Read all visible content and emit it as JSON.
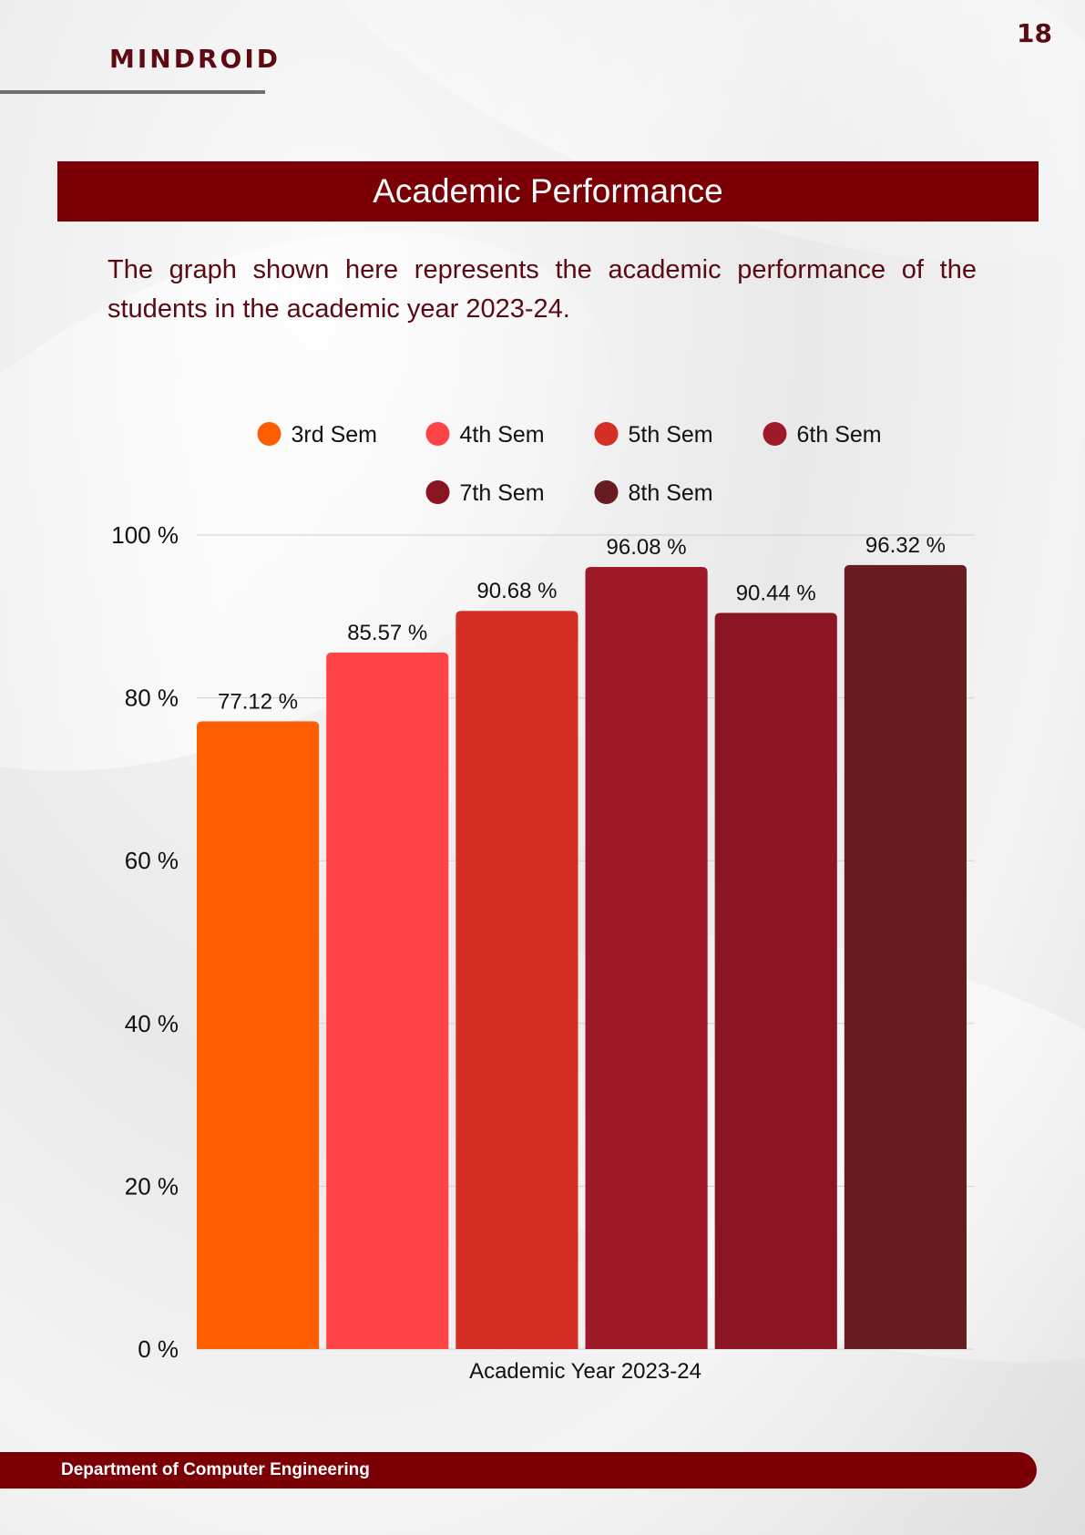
{
  "header": {
    "brand": "MINDROID",
    "page_number": "18"
  },
  "title": "Academic Performance",
  "intro_text": "The graph shown here represents the academic performance of the students in the academic year 2023-24.",
  "footer": {
    "department": "Department of Computer Engineering"
  },
  "chart_data": {
    "type": "bar",
    "categories": [
      "Academic Year 2023-24"
    ],
    "xlabel": "Academic Year 2023-24",
    "ylabel": "",
    "ylim": [
      0,
      100
    ],
    "y_ticks": [
      "0 %",
      "20 %",
      "40 %",
      "60 %",
      "80 %",
      "100 %"
    ],
    "y_tick_values": [
      0,
      20,
      40,
      60,
      80,
      100
    ],
    "grid": true,
    "legend_position": "top",
    "series": [
      {
        "name": "3rd Sem",
        "values": [
          77.12
        ],
        "label": "77.12 %",
        "color": "#ff5e00"
      },
      {
        "name": "4th Sem",
        "values": [
          85.57
        ],
        "label": "85.57 %",
        "color": "#ff4447"
      },
      {
        "name": "5th Sem",
        "values": [
          90.68
        ],
        "label": "90.68 %",
        "color": "#d52e24"
      },
      {
        "name": "6th Sem",
        "values": [
          96.08
        ],
        "label": "96.08 %",
        "color": "#9e1a28"
      },
      {
        "name": "7th Sem",
        "values": [
          90.44
        ],
        "label": "90.44 %",
        "color": "#8a1624"
      },
      {
        "name": "8th Sem",
        "values": [
          96.32
        ],
        "label": "96.32 %",
        "color": "#661c21"
      }
    ]
  }
}
